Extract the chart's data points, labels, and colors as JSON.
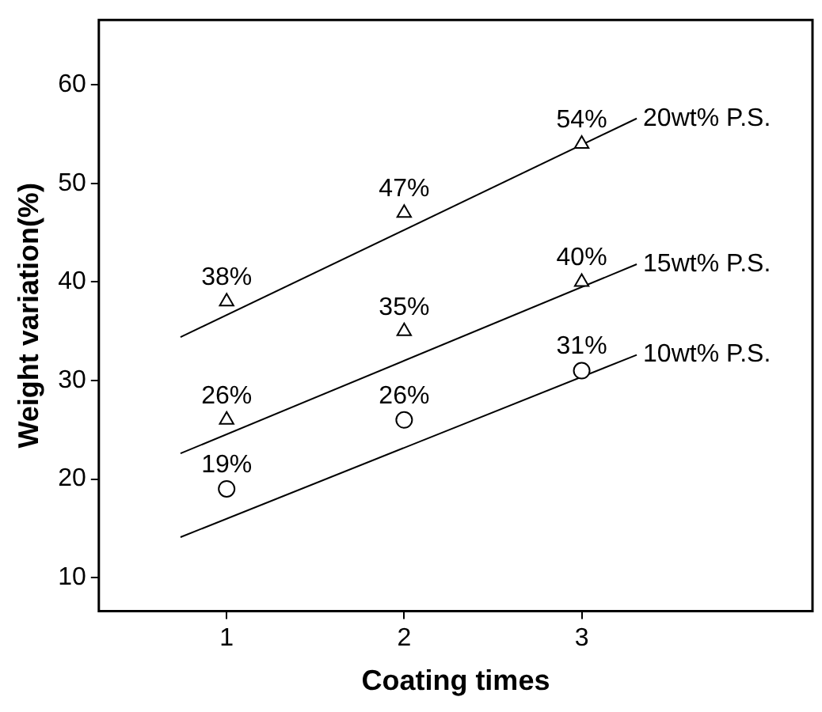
{
  "chart_data": {
    "type": "scatter",
    "xlabel": "Coating times",
    "ylabel": "Weight variation(%)",
    "xlim": [
      0.28,
      4.3
    ],
    "ylim": [
      6.6,
      66.6
    ],
    "xticks": [
      1,
      2,
      3
    ],
    "yticks": [
      10,
      20,
      30,
      40,
      50,
      60
    ],
    "grid": false,
    "legend": false,
    "series": [
      {
        "color": "#000000",
        "marker": "triangle",
        "x": [
          1,
          2,
          3
        ],
        "values": [
          38,
          47,
          54
        ],
        "value_labels": [
          "38%",
          "47%",
          "54%"
        ]
      },
      {
        "color": "#000000",
        "marker": "triangle",
        "x": [
          1,
          2,
          3
        ],
        "values": [
          26,
          35,
          40
        ],
        "value_labels": [
          "26%",
          "35%",
          "40%"
        ]
      },
      {
        "color": "#000000",
        "marker": "circle",
        "x": [
          1,
          2,
          3
        ],
        "values": [
          19,
          26,
          31
        ],
        "value_labels": [
          "19%",
          "26%",
          "31%"
        ]
      },
      {
        "type": "line",
        "name": "20wt% P.S.",
        "color": "#000000",
        "marker": "none",
        "x": [
          0.74,
          3.31
        ],
        "values": [
          34.4,
          56.6
        ]
      },
      {
        "type": "line",
        "name": "15wt% P.S.",
        "color": "#000000",
        "marker": "none",
        "x": [
          0.74,
          3.31
        ],
        "values": [
          22.6,
          41.8
        ]
      },
      {
        "type": "line",
        "name": "10wt% P.S.",
        "color": "#000000",
        "marker": "none",
        "x": [
          0.74,
          3.31
        ],
        "values": [
          14.1,
          32.6
        ]
      }
    ]
  }
}
